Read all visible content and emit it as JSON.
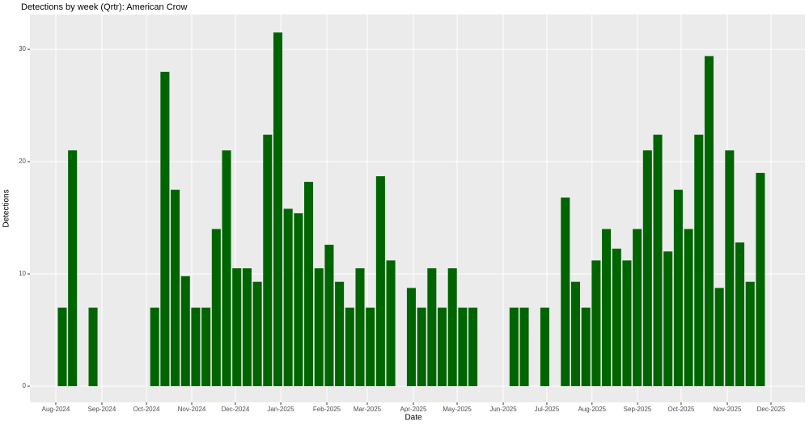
{
  "chart_data": {
    "type": "bar",
    "title": "Detections by week (Qrtr): American Crow",
    "x_label": "Date",
    "y_label": "Detections",
    "categories": [
      null,
      null,
      null,
      null,
      null,
      null,
      null,
      null,
      null,
      null,
      null,
      null,
      null,
      null,
      null,
      null,
      null,
      null,
      null,
      null,
      null,
      null,
      null,
      null,
      null,
      null,
      null,
      null,
      null,
      null,
      null,
      null,
      null,
      null,
      null,
      null,
      null,
      null,
      null,
      null,
      null,
      null,
      null,
      null,
      null,
      null,
      null,
      null,
      null,
      null,
      null,
      null,
      null,
      null,
      null,
      null,
      null,
      null,
      null,
      null,
      null,
      null,
      null,
      null,
      null,
      null,
      null,
      null,
      null
    ],
    "values": [
      7,
      21,
      null,
      7,
      null,
      null,
      null,
      null,
      null,
      7,
      28,
      17.5,
      9.8,
      7,
      7,
      14,
      21,
      10.5,
      10.5,
      9.3,
      22.4,
      31.5,
      15.8,
      15.4,
      18.2,
      10.5,
      12.6,
      9.3,
      7,
      10.5,
      7,
      18.7,
      11.2,
      null,
      8.75,
      7,
      10.5,
      7,
      10.5,
      7,
      7,
      null,
      null,
      null,
      7,
      7,
      null,
      7,
      null,
      16.8,
      9.3,
      7,
      11.2,
      14,
      12.25,
      11.2,
      14,
      21,
      22.4,
      12,
      17.5,
      14,
      22.4,
      29.4,
      8.75,
      21,
      12.8,
      9.3,
      19
    ],
    "color": "#006400",
    "xlim": [
      -3.15,
      72.34
    ],
    "xticks": [
      {
        "value": -0.63,
        "label": "Aug-2024"
      },
      {
        "value": 3.86,
        "label": "Sep-2024"
      },
      {
        "value": 8.2,
        "label": "Oct-2024"
      },
      {
        "value": 12.61,
        "label": "Nov-2024"
      },
      {
        "value": 16.86,
        "label": "Dec-2024"
      },
      {
        "value": 21.28,
        "label": "Jan-2025"
      },
      {
        "value": 25.77,
        "label": "Feb-2025"
      },
      {
        "value": 29.71,
        "label": "Mar-2025"
      },
      {
        "value": 34.2,
        "label": "Apr-2025"
      },
      {
        "value": 38.46,
        "label": "May-2025"
      },
      {
        "value": 42.95,
        "label": "Jun-2025"
      },
      {
        "value": 47.2,
        "label": "Jul-2025"
      },
      {
        "value": 51.6,
        "label": "Aug-2025"
      },
      {
        "value": 56.03,
        "label": "Sep-2025"
      },
      {
        "value": 60.28,
        "label": "Oct-2025"
      },
      {
        "value": 64.78,
        "label": "Nov-2025"
      },
      {
        "value": 69.03,
        "label": "Dec-2025"
      }
    ],
    "ylim": [
      -1.44,
      33.1
    ],
    "yticks": [
      0,
      10,
      20,
      30
    ],
    "grid": true
  }
}
